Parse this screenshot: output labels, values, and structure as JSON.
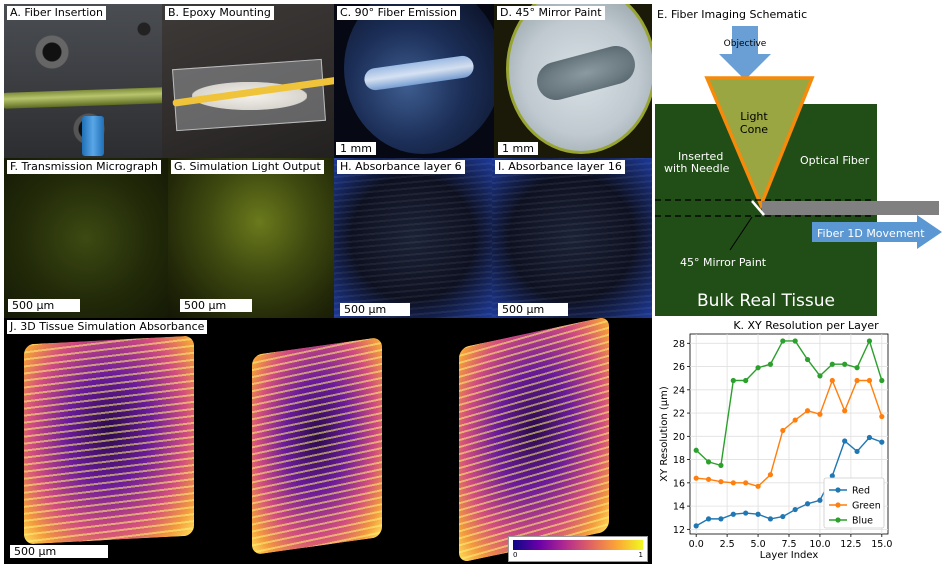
{
  "panels": {
    "a": {
      "label": "A. Fiber Insertion"
    },
    "b": {
      "label": "B. Epoxy Mounting"
    },
    "c": {
      "label": "C. 90° Fiber Emission",
      "scale": "1 mm"
    },
    "d": {
      "label": "D. 45° Mirror Paint",
      "scale": "1 mm"
    },
    "e": {
      "label": "E. Fiber Imaging Schematic",
      "objective": "Objective",
      "light_cone_line1": "Light",
      "light_cone_line2": "Cone",
      "inserted_line1": "Inserted",
      "inserted_line2": "with Needle",
      "optical_fiber": "Optical Fiber",
      "movement": "Fiber 1D Movement",
      "mirror": "45° Mirror Paint",
      "tissue": "Bulk Real Tissue",
      "colors": {
        "tissue": "#214d17",
        "cone_edge": "#f58a0b",
        "cone_fill": "#9aa641",
        "objective": "#6a9fd6",
        "fiber": "#808080",
        "arrow": "#5b97d2"
      }
    },
    "f": {
      "label": "F. Transmission Micrograph",
      "scale": "500 µm"
    },
    "g": {
      "label": "G. Simulation Light Output",
      "scale": "500 µm"
    },
    "h": {
      "label": "H. Absorbance layer 6",
      "scale": "500 µm"
    },
    "i": {
      "label": "I. Absorbance layer 16",
      "scale": "500 µm"
    },
    "j": {
      "label": "J. 3D Tissue Simulation Absorbance",
      "scale": "500 µm",
      "colorbar_min": "0",
      "colorbar_max": "1"
    }
  },
  "chart_data": {
    "type": "line",
    "title": "K. XY Resolution per Layer",
    "xlabel": "Layer Index",
    "ylabel": "XY Resolution (µm)",
    "xlim": [
      -0.5,
      15.5
    ],
    "ylim": [
      11.6,
      28.8
    ],
    "xticks": [
      "0.0",
      "2.5",
      "5.0",
      "7.5",
      "10.0",
      "12.5",
      "15.0"
    ],
    "xtick_values": [
      0,
      2.5,
      5,
      7.5,
      10,
      12.5,
      15
    ],
    "yticks": [
      "12",
      "14",
      "16",
      "18",
      "20",
      "22",
      "24",
      "26",
      "28"
    ],
    "ytick_values": [
      12,
      14,
      16,
      18,
      20,
      22,
      24,
      26,
      28
    ],
    "grid": true,
    "legend": "bottom-right",
    "x": [
      0,
      1,
      2,
      3,
      4,
      5,
      6,
      7,
      8,
      9,
      10,
      11,
      12,
      13,
      14,
      15
    ],
    "series": [
      {
        "name": "Red",
        "color": "#1f77b4",
        "values": [
          12.3,
          12.9,
          12.9,
          13.3,
          13.4,
          13.3,
          12.9,
          13.1,
          13.7,
          14.2,
          14.5,
          16.6,
          19.6,
          18.7,
          19.9,
          19.5
        ]
      },
      {
        "name": "Green",
        "color": "#ff7f0e",
        "values": [
          16.4,
          16.3,
          16.1,
          16.0,
          16.0,
          15.7,
          16.7,
          20.5,
          21.4,
          22.2,
          21.9,
          24.8,
          22.2,
          24.8,
          24.8,
          21.7
        ]
      },
      {
        "name": "Blue",
        "color": "#2ca02c",
        "values": [
          18.8,
          17.8,
          17.5,
          24.8,
          24.8,
          25.9,
          26.2,
          28.2,
          28.2,
          26.6,
          25.2,
          26.2,
          26.2,
          25.9,
          28.2,
          24.8
        ]
      }
    ]
  }
}
